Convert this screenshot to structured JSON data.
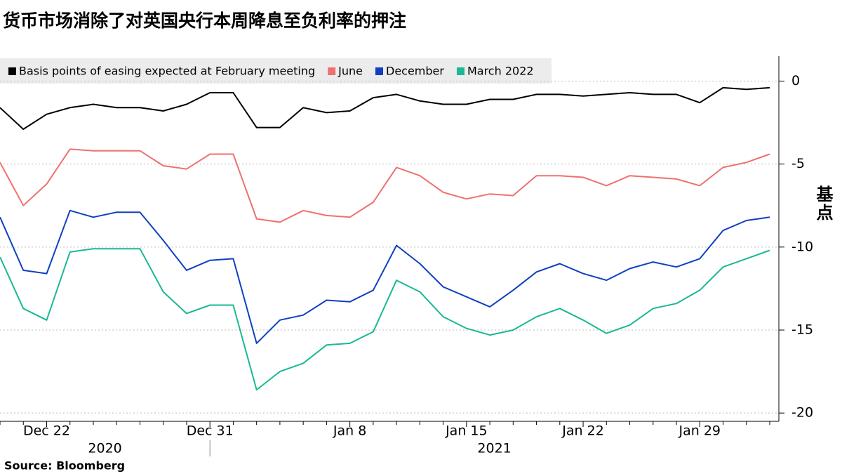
{
  "chart_data": {
    "type": "line",
    "title": "货币市场消除了对英国央行本周降息至负利率的押注",
    "y_label": "基点",
    "source": "Source:  Bloomberg",
    "categories": [
      null,
      null,
      "Dec 22",
      null,
      null,
      null,
      null,
      null,
      null,
      "Dec 31",
      null,
      null,
      null,
      null,
      null,
      "Jan 8",
      null,
      null,
      null,
      null,
      "Jan 15",
      null,
      null,
      null,
      null,
      "Jan 22",
      null,
      null,
      null,
      null,
      "Jan 29",
      null,
      null,
      null
    ],
    "year_labels": [
      "2020",
      "2021"
    ],
    "series": [
      {
        "name": "Basis points of easing expected at February meeting",
        "color": "#000000",
        "values": [
          -1.6,
          -2.9,
          -2.0,
          -1.6,
          -1.4,
          -1.6,
          -1.6,
          -1.8,
          -1.4,
          -0.7,
          -0.7,
          -2.8,
          -2.8,
          -1.6,
          -1.9,
          -1.8,
          -1.0,
          -0.8,
          -1.2,
          -1.4,
          -1.4,
          -1.1,
          -1.1,
          -0.8,
          -0.8,
          -0.9,
          -0.8,
          -0.7,
          -0.8,
          -0.8,
          -1.3,
          -0.4,
          -0.5,
          -0.4
        ]
      },
      {
        "name": "June",
        "color": "#f07070",
        "values": [
          -4.9,
          -7.5,
          -6.2,
          -4.1,
          -4.2,
          -4.2,
          -4.2,
          -5.1,
          -5.3,
          -4.4,
          -4.4,
          -8.3,
          -8.5,
          -7.8,
          -8.1,
          -8.2,
          -7.3,
          -5.2,
          -5.7,
          -6.7,
          -7.1,
          -6.8,
          -6.9,
          -5.7,
          -5.7,
          -5.8,
          -6.3,
          -5.7,
          -5.8,
          -5.9,
          -6.3,
          -5.2,
          -4.9,
          -4.4
        ]
      },
      {
        "name": "December",
        "color": "#1040c0",
        "values": [
          -8.2,
          -11.4,
          -11.6,
          -7.8,
          -8.2,
          -7.9,
          -7.9,
          -9.6,
          -11.4,
          -10.8,
          -10.7,
          -15.8,
          -14.4,
          -14.1,
          -13.2,
          -13.3,
          -12.6,
          -9.9,
          -11.0,
          -12.4,
          -13.0,
          -13.6,
          -12.6,
          -11.5,
          -11.0,
          -11.6,
          -12.0,
          -11.3,
          -10.9,
          -11.2,
          -10.7,
          -9.0,
          -8.4,
          -8.2
        ]
      },
      {
        "name": "March 2022",
        "color": "#1ab894",
        "values": [
          -10.6,
          -13.7,
          -14.4,
          -10.3,
          -10.1,
          -10.1,
          -10.1,
          -12.7,
          -14.0,
          -13.5,
          -13.5,
          -18.6,
          -17.5,
          -17.0,
          -15.9,
          -15.8,
          -15.1,
          -12.0,
          -12.7,
          -14.2,
          -14.9,
          -15.3,
          -15.0,
          -14.2,
          -13.7,
          -14.4,
          -15.2,
          -14.7,
          -13.7,
          -13.4,
          -12.6,
          -11.2,
          -10.7,
          -10.2
        ]
      }
    ],
    "ylim": [
      -20.5,
      1.5
    ],
    "yticks": [
      0,
      -5,
      -10,
      -15,
      -20
    ],
    "grid": true,
    "legend": "top-left"
  }
}
